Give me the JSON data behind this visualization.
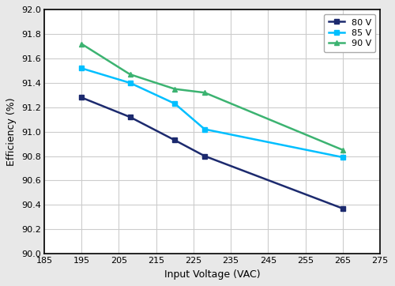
{
  "series": [
    {
      "label": "80 V",
      "color": "#1c2a6e",
      "x": [
        195,
        208,
        220,
        228,
        265
      ],
      "y": [
        91.28,
        91.12,
        90.93,
        90.8,
        90.37
      ],
      "marker": "s"
    },
    {
      "label": "85 V",
      "color": "#00bfff",
      "x": [
        195,
        208,
        220,
        228,
        265
      ],
      "y": [
        91.52,
        91.4,
        91.23,
        91.02,
        90.79
      ],
      "marker": "s"
    },
    {
      "label": "90 V",
      "color": "#3cb371",
      "x": [
        195,
        208,
        220,
        228,
        265
      ],
      "y": [
        91.72,
        91.47,
        91.35,
        91.32,
        90.85
      ],
      "marker": "^"
    }
  ],
  "xlabel": "Input Voltage (VAC)",
  "ylabel": "Efficiency (%)",
  "xlim": [
    185,
    275
  ],
  "ylim": [
    90.0,
    92.0
  ],
  "xticks": [
    185,
    195,
    205,
    215,
    225,
    235,
    245,
    255,
    265,
    275
  ],
  "yticks": [
    90.0,
    90.2,
    90.4,
    90.6,
    90.8,
    91.0,
    91.2,
    91.4,
    91.6,
    91.8,
    92.0
  ],
  "plot_bg_color": "#ffffff",
  "fig_bg_color": "#e8e8e8",
  "grid_color": "#cccccc",
  "spine_color": "#000000",
  "legend_loc": "upper right",
  "tick_label_fontsize": 8,
  "axis_label_fontsize": 9,
  "legend_fontsize": 8,
  "linewidth": 1.8,
  "markersize": 5
}
